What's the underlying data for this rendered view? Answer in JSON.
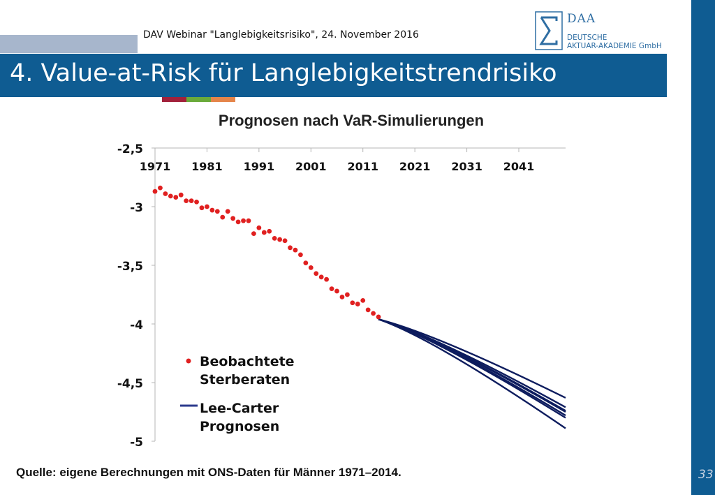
{
  "header": {
    "caption": "DAV Webinar \"Langlebigkeitsrisiko\", 24. November 2016",
    "title": "4. Value-at-Risk für Langlebigkeitstrendrisiko",
    "accent_colors": [
      "#a2213b",
      "#6aaa3a",
      "#e5854a"
    ],
    "brand_color": "#0f5c92"
  },
  "logo": {
    "abbr": "DAA",
    "line1": "DEUTSCHE",
    "line2": "AKTUAR-AKADEMIE GmbH"
  },
  "page_number": "33",
  "source": "Quelle: eigene Berechnungen mit ONS-Daten für Männer 1971–2014.",
  "chart_data": {
    "type": "line",
    "title": "Prognosen nach VaR-Simulierungen",
    "xlabel": "",
    "ylabel": "",
    "xlim": [
      1971,
      2050
    ],
    "ylim": [
      -5,
      -2.5
    ],
    "x_ticks": [
      "1971",
      "1981",
      "1991",
      "2001",
      "2011",
      "2021",
      "2031",
      "2041"
    ],
    "y_ticks": [
      "-2,5",
      "-3",
      "-3,5",
      "-4",
      "-4,5",
      "-5"
    ],
    "x_axis_position": "top",
    "grid": false,
    "legend": {
      "placement": "bottom-left",
      "observed_label_1": "Beobachtete",
      "observed_label_2": "Sterberaten",
      "forecast_label_1": "Lee-Carter",
      "forecast_label_2": "Prognosen"
    },
    "observed": {
      "color": "#e02020",
      "x": [
        1971,
        1972,
        1973,
        1974,
        1975,
        1976,
        1977,
        1978,
        1979,
        1980,
        1981,
        1982,
        1983,
        1984,
        1985,
        1986,
        1987,
        1988,
        1989,
        1990,
        1991,
        1992,
        1993,
        1994,
        1995,
        1996,
        1997,
        1998,
        1999,
        2000,
        2001,
        2002,
        2003,
        2004,
        2005,
        2006,
        2007,
        2008,
        2009,
        2010,
        2011,
        2012,
        2013,
        2014
      ],
      "y": [
        -2.87,
        -2.84,
        -2.89,
        -2.91,
        -2.92,
        -2.9,
        -2.95,
        -2.95,
        -2.96,
        -3.01,
        -3.0,
        -3.03,
        -3.04,
        -3.09,
        -3.04,
        -3.1,
        -3.13,
        -3.12,
        -3.12,
        -3.23,
        -3.18,
        -3.22,
        -3.21,
        -3.27,
        -3.28,
        -3.29,
        -3.35,
        -3.37,
        -3.41,
        -3.48,
        -3.52,
        -3.57,
        -3.6,
        -3.62,
        -3.7,
        -3.72,
        -3.77,
        -3.75,
        -3.82,
        -3.83,
        -3.8,
        -3.88,
        -3.91,
        -3.94
      ]
    },
    "forecasts": {
      "color": "#0d1c5e",
      "x": [
        2014,
        2050
      ],
      "paths": [
        {
          "y": [
            -3.96,
            -4.63
          ]
        },
        {
          "y": [
            -3.96,
            -4.71
          ]
        },
        {
          "y": [
            -3.96,
            -4.74
          ]
        },
        {
          "y": [
            -3.96,
            -4.75
          ]
        },
        {
          "y": [
            -3.96,
            -4.78
          ]
        },
        {
          "y": [
            -3.96,
            -4.8
          ]
        },
        {
          "y": [
            -3.96,
            -4.89
          ]
        }
      ]
    }
  }
}
